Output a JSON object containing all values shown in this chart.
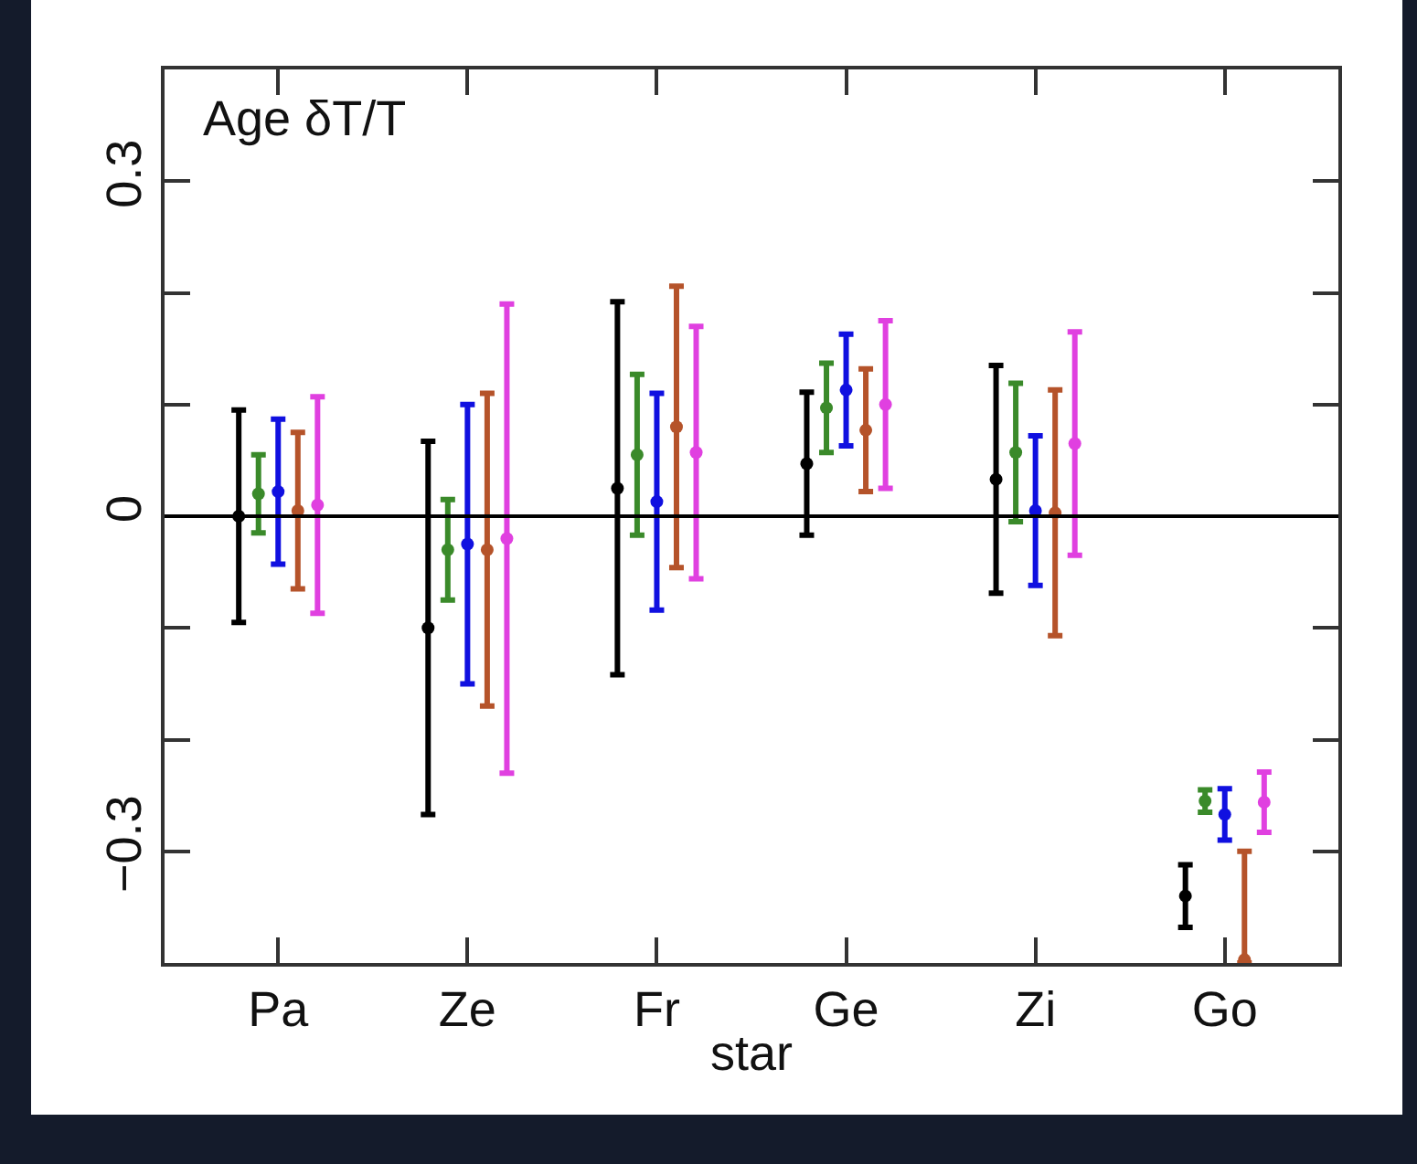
{
  "chart_data": {
    "type": "scatter",
    "xlabel": "star",
    "annotations": [
      "Age δT/T"
    ],
    "categories": [
      "Pa",
      "Ze",
      "Fr",
      "Ge",
      "Zi",
      "Go"
    ],
    "series": [
      {
        "color": "#000000",
        "values": [
          0.0,
          -0.1,
          0.025,
          0.047,
          0.033,
          -0.34
        ],
        "errors": [
          0.095,
          0.167,
          0.167,
          0.064,
          0.102,
          0.028
        ]
      },
      {
        "color": "#3a8a2a",
        "values": [
          0.02,
          -0.03,
          0.055,
          0.097,
          0.057,
          -0.255
        ],
        "errors": [
          0.035,
          0.045,
          0.072,
          0.04,
          0.062,
          0.01
        ]
      },
      {
        "color": "#1010e0",
        "values": [
          0.022,
          -0.025,
          0.013,
          0.113,
          0.005,
          -0.267
        ],
        "errors": [
          0.065,
          0.125,
          0.097,
          0.05,
          0.067,
          0.023
        ]
      },
      {
        "color": "#b5532a",
        "values": [
          0.005,
          -0.03,
          0.08,
          0.077,
          0.003,
          -0.397
        ],
        "errors": [
          0.07,
          0.14,
          0.126,
          0.055,
          0.11,
          [
            -0.4,
            -0.3
          ]
        ]
      },
      {
        "color": "#e040e0",
        "values": [
          0.01,
          -0.02,
          0.057,
          0.1,
          0.065,
          -0.256
        ],
        "errors": [
          0.097,
          0.21,
          0.113,
          0.075,
          0.1,
          0.027
        ]
      }
    ],
    "ylim": [
      -0.4,
      0.4
    ],
    "yticks": [
      {
        "value": -0.3,
        "label": "−0.3"
      },
      {
        "value": -0.2,
        "label": null
      },
      {
        "value": -0.1,
        "label": null
      },
      0,
      {
        "value": 0.1,
        "label": null
      },
      {
        "value": 0.2,
        "label": null
      },
      0.3
    ],
    "ref_lines": [
      {
        "axis": "y",
        "value": 0,
        "color": "#000000"
      }
    ],
    "grid": false,
    "marker": "circle"
  }
}
